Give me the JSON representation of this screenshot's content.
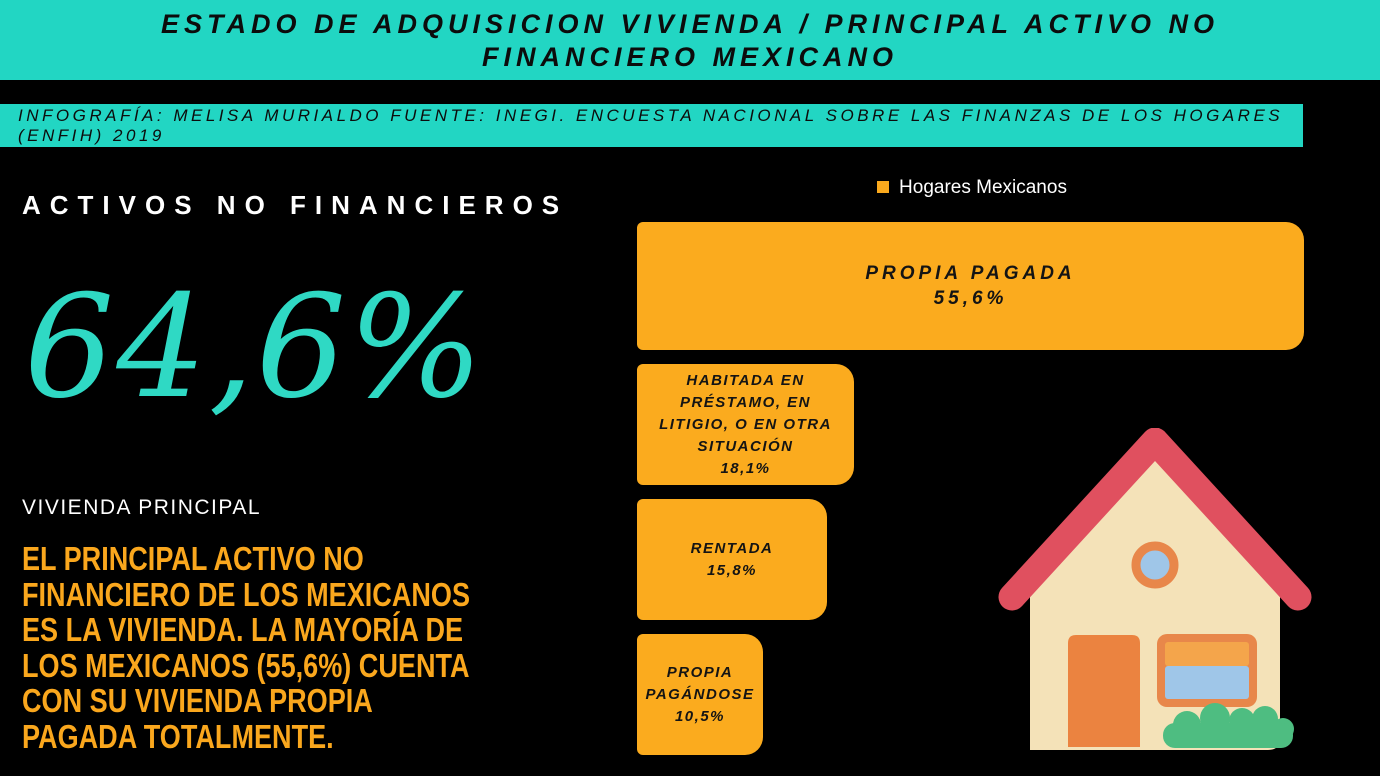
{
  "header": {
    "title_line1": "ESTADO DE ADQUISICION VIVIENDA / PRINCIPAL ACTIVO NO",
    "title_line2": "FINANCIERO MEXICANO",
    "credit": "INFOGRAFÍA: MELISA MURIALDO FUENTE: INEGI. ENCUESTA NACIONAL SOBRE LAS FINANZAS DE LOS HOGARES (ENFIH) 2019"
  },
  "left": {
    "section_title": "ACTIVOS NO FINANCIEROS",
    "big_stat": "64,6%",
    "stat_label": "VIVIENDA PRINCIPAL",
    "description": "EL PRINCIPAL ACTIVO NO FINANCIERO DE LOS MEXICANOS ES LA VIVIENDA. LA MAYORÍA DE LOS MEXICANOS (55,6%) CUENTA CON SU VIVIENDA PROPIA PAGADA TOTALMENTE.",
    "description_lines": [
      "EL PRINCIPAL ACTIVO NO",
      "FINANCIERO DE LOS MEXICANOS",
      "ES LA VIVIENDA. LA MAYORÍA DE",
      "LOS MEXICANOS (55,6%) CUENTA",
      "CON SU VIVIENDA PROPIA",
      "PAGADA TOTALMENTE."
    ]
  },
  "chart_data": {
    "type": "bar",
    "orientation": "horizontal",
    "series_name": "Hogares Mexicanos",
    "legend_position": "top-center",
    "unit": "%",
    "xlim": [
      0,
      57
    ],
    "categories": [
      "Propia pagada",
      "Habitada en préstamo, en litigio, o en otra situación",
      "Rentada",
      "Propia pagándose"
    ],
    "values": [
      55.6,
      18.1,
      15.8,
      10.5
    ],
    "bars": [
      {
        "name": "Propia pagada",
        "label_lines": [
          "PROPIA PAGADA"
        ],
        "value": 55.6,
        "value_label": "55,6%"
      },
      {
        "name": "Habitada en préstamo, en litigio, o en otra situación",
        "label_lines": [
          "HABITADA EN",
          "PRÉSTAMO, EN",
          "LITIGIO, O EN OTRA",
          "SITUACIÓN"
        ],
        "value": 18.1,
        "value_label": "18,1%"
      },
      {
        "name": "Rentada",
        "label_lines": [
          "RENTADA"
        ],
        "value": 15.8,
        "value_label": "15,8%"
      },
      {
        "name": "Propia pagándose",
        "label_lines": [
          "PROPIA",
          "PAGÁNDOSE"
        ],
        "value": 10.5,
        "value_label": "10,5%"
      }
    ]
  },
  "colors": {
    "teal": "#22d6c3",
    "bar_orange": "#fbab1e",
    "text_orange": "#faa71d",
    "stat_teal": "#2fd9c4",
    "background": "#000000",
    "text_white": "#ffffff",
    "text_black": "#0c0c0c",
    "house": {
      "roof": "#e0505f",
      "walls": "#f4e2b8",
      "door": "#eb8340",
      "window_frame": "#e8874a",
      "window_top": "#f4a54b",
      "window_glass": "#9fc6e8",
      "bush": "#4ebd81"
    }
  },
  "illustration": {
    "name": "house"
  }
}
